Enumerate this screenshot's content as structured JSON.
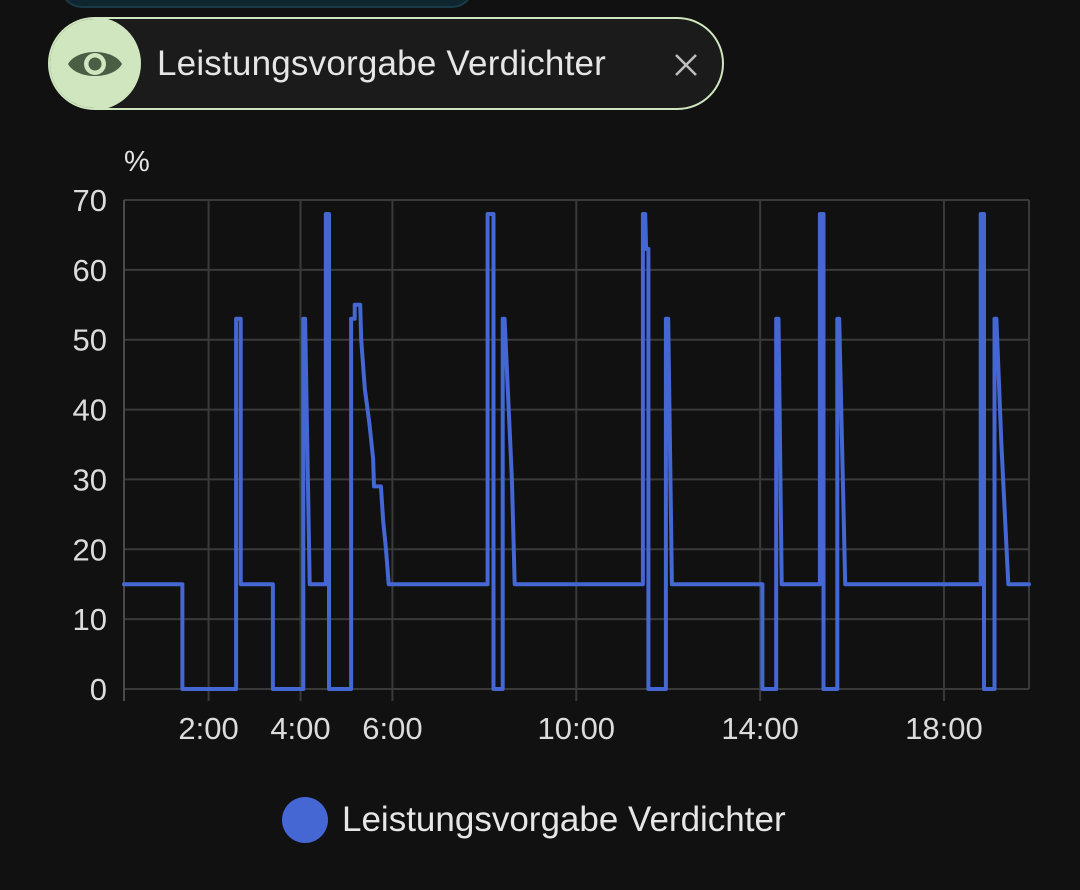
{
  "filter_chip": {
    "label": "Leistungsvorgabe Verdichter",
    "icon": "eye-icon",
    "close_icon": "close-icon",
    "colors": {
      "border": "#cfe6bf",
      "icon_bg": "#cfe6bf",
      "icon": "#4a5d45"
    }
  },
  "chart_data": {
    "type": "line",
    "unit": "%",
    "xlabel": "",
    "ylabel": "",
    "x_ticks": [
      "2:00",
      "4:00",
      "6:00",
      "10:00",
      "14:00",
      "18:00"
    ],
    "x_tick_hours": [
      2,
      4,
      6,
      10,
      14,
      18
    ],
    "y_ticks": [
      0,
      10,
      20,
      30,
      40,
      50,
      60,
      70
    ],
    "xlim": [
      0.16,
      19.85
    ],
    "ylim": [
      0,
      70
    ],
    "grid": true,
    "legend_position": "bottom",
    "series": [
      {
        "name": "Leistungsvorgabe Verdichter",
        "color": "#4467d4",
        "points": [
          [
            0.16,
            15
          ],
          [
            1.43,
            15
          ],
          [
            1.43,
            0
          ],
          [
            2.6,
            0
          ],
          [
            2.6,
            53
          ],
          [
            2.7,
            53
          ],
          [
            2.7,
            15
          ],
          [
            3.4,
            15
          ],
          [
            3.4,
            0
          ],
          [
            4.06,
            0
          ],
          [
            4.06,
            53
          ],
          [
            4.1,
            53
          ],
          [
            4.2,
            15
          ],
          [
            4.55,
            15
          ],
          [
            4.55,
            68
          ],
          [
            4.62,
            68
          ],
          [
            4.62,
            0
          ],
          [
            5.1,
            0
          ],
          [
            5.1,
            53
          ],
          [
            5.18,
            53
          ],
          [
            5.18,
            55
          ],
          [
            5.3,
            55
          ],
          [
            5.32,
            50
          ],
          [
            5.4,
            43
          ],
          [
            5.5,
            38
          ],
          [
            5.58,
            33
          ],
          [
            5.6,
            29
          ],
          [
            5.75,
            29
          ],
          [
            5.8,
            24
          ],
          [
            5.86,
            20
          ],
          [
            5.92,
            15
          ],
          [
            8.07,
            15
          ],
          [
            8.07,
            68
          ],
          [
            8.2,
            68
          ],
          [
            8.2,
            0
          ],
          [
            8.4,
            0
          ],
          [
            8.4,
            53
          ],
          [
            8.44,
            53
          ],
          [
            8.6,
            30
          ],
          [
            8.66,
            15
          ],
          [
            11.45,
            15
          ],
          [
            11.45,
            68
          ],
          [
            11.5,
            68
          ],
          [
            11.52,
            63
          ],
          [
            11.57,
            63
          ],
          [
            11.57,
            0
          ],
          [
            11.95,
            0
          ],
          [
            11.95,
            53
          ],
          [
            12.0,
            53
          ],
          [
            12.08,
            15
          ],
          [
            14.05,
            15
          ],
          [
            14.05,
            0
          ],
          [
            14.35,
            0
          ],
          [
            14.35,
            53
          ],
          [
            14.4,
            53
          ],
          [
            14.47,
            15
          ],
          [
            15.3,
            15
          ],
          [
            15.3,
            68
          ],
          [
            15.38,
            68
          ],
          [
            15.38,
            0
          ],
          [
            15.68,
            0
          ],
          [
            15.68,
            53
          ],
          [
            15.72,
            53
          ],
          [
            15.85,
            15
          ],
          [
            18.8,
            15
          ],
          [
            18.8,
            68
          ],
          [
            18.87,
            68
          ],
          [
            18.87,
            0
          ],
          [
            19.1,
            0
          ],
          [
            19.1,
            53
          ],
          [
            19.14,
            53
          ],
          [
            19.25,
            35
          ],
          [
            19.4,
            15
          ],
          [
            19.85,
            15
          ]
        ]
      }
    ]
  },
  "legend": {
    "items": [
      {
        "label": "Leistungsvorgabe Verdichter",
        "color": "#4467d4"
      }
    ]
  }
}
